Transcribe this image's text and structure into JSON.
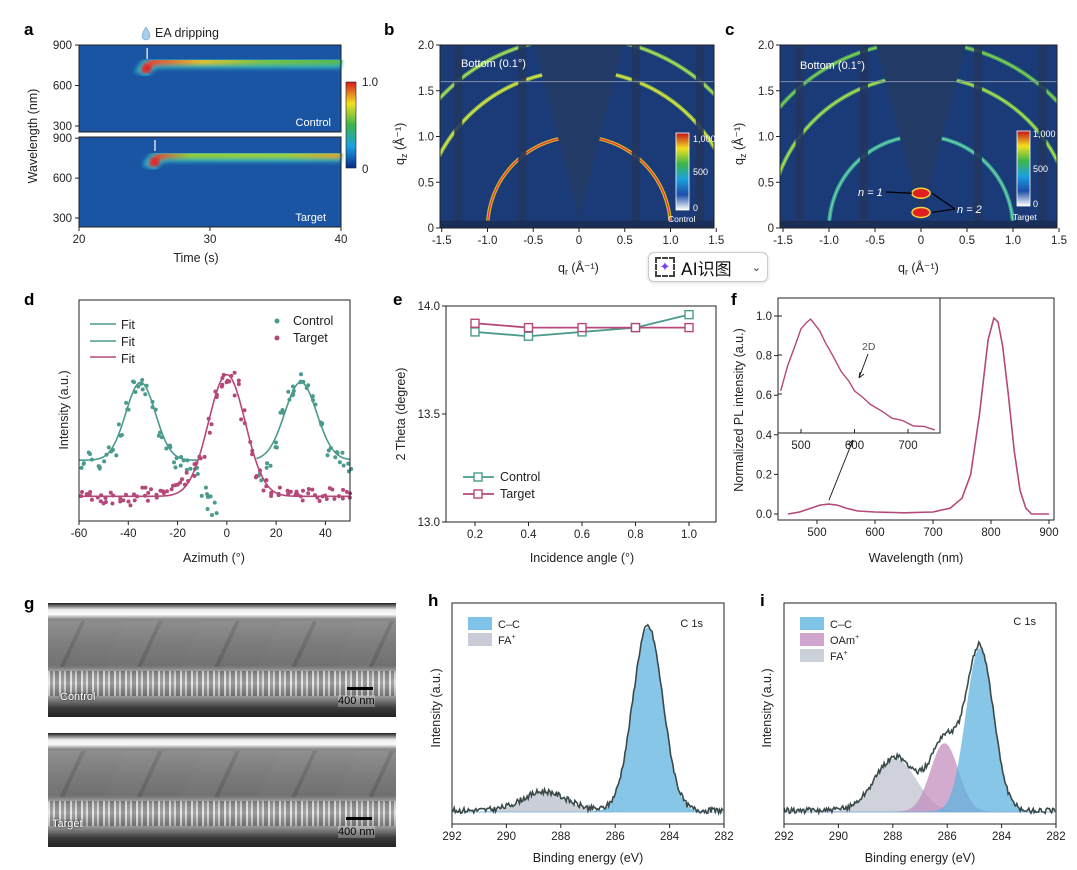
{
  "panel_letters": [
    "a",
    "b",
    "c",
    "d",
    "e",
    "f",
    "g",
    "h",
    "i"
  ],
  "overlay": {
    "ai_button_label": "AI识图",
    "chevron": "⌄"
  },
  "panel_g": {
    "images": [
      {
        "label": "Control",
        "scale_bar": "400 nm"
      },
      {
        "label": "Target",
        "scale_bar": "400 nm"
      }
    ]
  },
  "chart_data": [
    {
      "panel": "a",
      "type": "heatmap",
      "annotation": "EA dripping",
      "xlabel": "Time (s)",
      "ylabel": "Wavelength (nm)",
      "xticks": [
        "20",
        "30",
        "40"
      ],
      "xlim": [
        20,
        40
      ],
      "yticks": [
        "300",
        "600",
        "900"
      ],
      "subplots": [
        {
          "label": "Control",
          "onset_time_s": 25.2,
          "emission_nm": 780,
          "peak_time_s": 27
        },
        {
          "label": "Target",
          "onset_time_s": 25.8,
          "emission_nm": 775,
          "peak_time_s": 26.5
        }
      ],
      "colorbar": {
        "min_label": "0",
        "max_label": "1.0"
      }
    },
    {
      "panel": "b",
      "type": "heatmap",
      "xlabel": "q",
      "xlabel_sub": "r",
      "xunit": " (Å⁻¹)",
      "ylabel": "q",
      "ylabel_sub": "z",
      "yunit": " (Å⁻¹)",
      "xticks": [
        "-1.5",
        "-1.0",
        "-0.5",
        "0",
        "0.5",
        "1.0",
        "1.5"
      ],
      "yticks": [
        "0",
        "0.5",
        "1.0",
        "1.5",
        "2.0"
      ],
      "annotation": "Bottom (0.1°)",
      "rings_q": [
        1.0,
        1.72,
        2.08
      ],
      "colorbar": {
        "ticks": [
          "1,000",
          "500",
          "0"
        ],
        "label": "Control"
      }
    },
    {
      "panel": "c",
      "type": "heatmap",
      "xlabel": "q",
      "xlabel_sub": "r",
      "xunit": " (Å⁻¹)",
      "ylabel": "q",
      "ylabel_sub": "z",
      "yunit": " (Å⁻¹)",
      "xticks": [
        "-1.5",
        "-1.0",
        "-0.5",
        "0",
        "0.5",
        "1.0",
        "1.5"
      ],
      "yticks": [
        "0",
        "0.5",
        "1.0",
        "1.5",
        "2.0"
      ],
      "annotation": "Bottom (0.1°)",
      "rings_q": [
        1.0,
        1.65,
        2.02
      ],
      "spots_qz": [
        0.38,
        0.17
      ],
      "labels": [
        "n = 1",
        "n = 2"
      ],
      "colorbar": {
        "ticks": [
          "1,000",
          "500",
          "0"
        ],
        "label": "Target"
      }
    },
    {
      "panel": "d",
      "type": "scatter",
      "xlabel": "Azimuth (°)",
      "ylabel": "Intensity (a.u.)",
      "xticks": [
        "-60",
        "-40",
        "-20",
        "0",
        "20",
        "40"
      ],
      "xlim": [
        -60,
        50
      ],
      "ylim": [
        0,
        1.16
      ],
      "legend": [
        "Fit",
        "Fit",
        "Fit",
        "Control",
        "Target"
      ],
      "colors": {
        "control": "#4a9b8e",
        "target": "#b5487a"
      },
      "series": [
        {
          "name": "Control",
          "x": [
            -58,
            -55,
            -52,
            -49,
            -46,
            -43,
            -40,
            -37,
            -35,
            -33,
            -30,
            -27,
            -24,
            -21,
            -18,
            -15,
            -12,
            -9,
            -7,
            -5,
            14,
            17,
            20,
            23,
            26,
            28,
            30,
            32,
            35,
            38,
            41,
            44,
            47,
            50
          ],
          "y": [
            0.3,
            0.33,
            0.31,
            0.35,
            0.37,
            0.47,
            0.6,
            0.7,
            0.73,
            0.7,
            0.6,
            0.47,
            0.36,
            0.32,
            0.3,
            0.28,
            0.25,
            0.16,
            0.1,
            0.07,
            0.25,
            0.32,
            0.42,
            0.55,
            0.65,
            0.7,
            0.74,
            0.7,
            0.62,
            0.48,
            0.38,
            0.34,
            0.32,
            0.3
          ]
        },
        {
          "name": "Target",
          "x": [
            -58,
            -55,
            -52,
            -49,
            -46,
            -43,
            -40,
            -37,
            -34,
            -31,
            -28,
            -25,
            -22,
            -19,
            -16,
            -13,
            -10,
            -7,
            -4,
            -2,
            0,
            2,
            4,
            7,
            10,
            13,
            16,
            19,
            22,
            25,
            28,
            31,
            34,
            37,
            40,
            43,
            46,
            49
          ],
          "y": [
            0.14,
            0.12,
            0.13,
            0.12,
            0.13,
            0.14,
            0.12,
            0.13,
            0.14,
            0.13,
            0.15,
            0.14,
            0.18,
            0.2,
            0.22,
            0.27,
            0.35,
            0.5,
            0.68,
            0.74,
            0.77,
            0.75,
            0.7,
            0.55,
            0.38,
            0.25,
            0.18,
            0.16,
            0.15,
            0.14,
            0.16,
            0.13,
            0.15,
            0.14,
            0.13,
            0.15,
            0.14,
            0.13
          ]
        }
      ],
      "fits": {
        "control": {
          "baseline": 0.32,
          "peaks": [
            {
              "center": -35,
              "amp": 0.41,
              "sigma": 6
            },
            {
              "center": 30,
              "amp": 0.41,
              "sigma": 6.5
            }
          ]
        },
        "target": {
          "baseline": 0.13,
          "peaks": [
            {
              "center": 0,
              "amp": 0.64,
              "sigma": 7.5
            }
          ]
        }
      }
    },
    {
      "panel": "e",
      "type": "line",
      "xlabel": "Incidence angle (°)",
      "ylabel": "2 Theta (degree)",
      "x": [
        0.2,
        0.4,
        0.6,
        0.8,
        1.0
      ],
      "xticks": [
        "0.2",
        "0.4",
        "0.6",
        "0.8",
        "1.0"
      ],
      "yticks": [
        "13.0",
        "13.5",
        "14.0"
      ],
      "ylim": [
        13.0,
        14.0
      ],
      "series": [
        {
          "name": "Control",
          "values": [
            13.88,
            13.86,
            13.88,
            13.9,
            13.96
          ],
          "color": "#4a9b8e"
        },
        {
          "name": "Target",
          "values": [
            13.92,
            13.9,
            13.9,
            13.9,
            13.9
          ],
          "color": "#b5487a"
        }
      ]
    },
    {
      "panel": "f",
      "type": "line",
      "xlabel": "Wavelength (nm)",
      "ylabel": "Normalized PL intensity (a.u.)",
      "xticks": [
        "500",
        "600",
        "700",
        "800",
        "900"
      ],
      "yticks": [
        "0.0",
        "0.2",
        "0.4",
        "0.6",
        "0.8",
        "1.0"
      ],
      "xlim": [
        433,
        900
      ],
      "ylim": [
        -0.03,
        1.1
      ],
      "color": "#b5487a",
      "x": [
        450,
        470,
        490,
        505,
        520,
        535,
        550,
        570,
        600,
        650,
        700,
        730,
        750,
        765,
        780,
        795,
        805,
        812,
        820,
        830,
        840,
        850,
        860,
        870,
        900
      ],
      "values": [
        0.0,
        0.01,
        0.03,
        0.045,
        0.05,
        0.045,
        0.03,
        0.015,
        0.01,
        0.006,
        0.01,
        0.03,
        0.08,
        0.2,
        0.5,
        0.88,
        0.99,
        0.97,
        0.85,
        0.6,
        0.32,
        0.12,
        0.03,
        0.0,
        0.0
      ],
      "inset": {
        "xticks": [
          "500",
          "600",
          "700"
        ],
        "yticks": [
          "0.4",
          "0.6",
          "0.8",
          "1.0"
        ],
        "annotation": "2D",
        "x": [
          462,
          475,
          490,
          500,
          510,
          518,
          526,
          535,
          545,
          560,
          575,
          590,
          600,
          615,
          630,
          650,
          670,
          690,
          710,
          730,
          750
        ],
        "values": [
          0.62,
          0.74,
          0.86,
          0.93,
          0.97,
          0.98,
          0.96,
          0.92,
          0.87,
          0.79,
          0.72,
          0.66,
          0.62,
          0.58,
          0.55,
          0.51,
          0.48,
          0.46,
          0.44,
          0.43,
          0.42
        ]
      }
    },
    {
      "panel": "h",
      "type": "area",
      "xlabel": "Binding energy (eV)",
      "ylabel": "Intensity (a.u.)",
      "xticks": [
        "292",
        "290",
        "288",
        "286",
        "284",
        "282"
      ],
      "xlim": [
        292,
        282
      ],
      "annotation": "C 1s",
      "components": [
        {
          "name": "C–C",
          "center": 284.8,
          "amp": 0.97,
          "sigma": 0.55,
          "color": "#5fb4e0"
        },
        {
          "name": "FA",
          "sup": "+",
          "center": 288.6,
          "amp": 0.1,
          "sigma": 0.8,
          "color": "#b9bfcc"
        }
      ]
    },
    {
      "panel": "i",
      "type": "area",
      "xlabel": "Binding energy (eV)",
      "ylabel": "Intensity (a.u.)",
      "xticks": [
        "292",
        "290",
        "288",
        "286",
        "284",
        "282"
      ],
      "xlim": [
        292,
        282
      ],
      "annotation": "C 1s",
      "components": [
        {
          "name": "C–C",
          "center": 284.8,
          "amp": 0.86,
          "sigma": 0.5,
          "color": "#5fb4e0"
        },
        {
          "name": "OAm",
          "sup": "+",
          "center": 286.1,
          "amp": 0.36,
          "sigma": 0.5,
          "color": "#c48fc0"
        },
        {
          "name": "FA",
          "sup": "+",
          "center": 287.9,
          "amp": 0.28,
          "sigma": 0.75,
          "color": "#bfc4d0"
        }
      ]
    }
  ]
}
